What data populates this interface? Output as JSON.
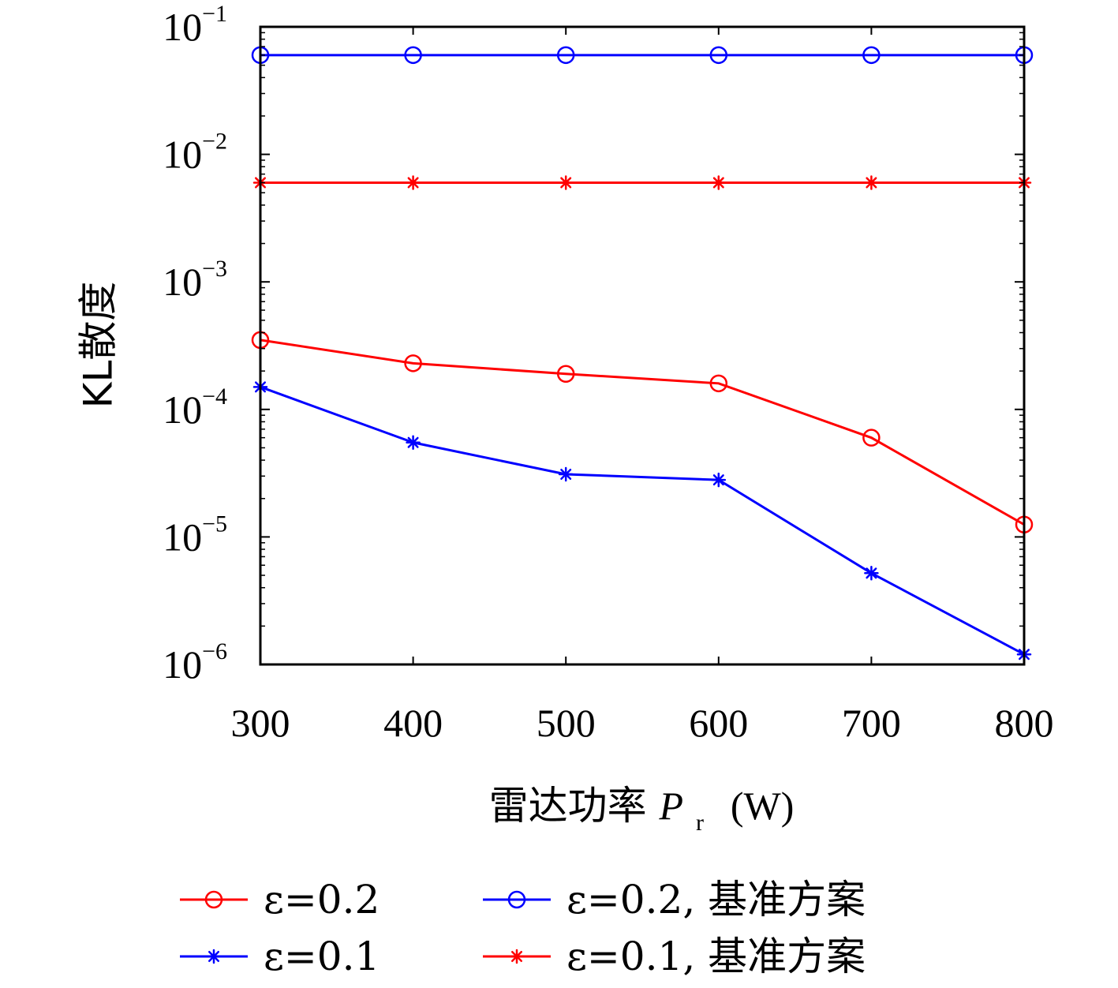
{
  "chart_data": {
    "type": "line",
    "y_scale": "log",
    "xlabel": "雷达功率",
    "xlabel_symbol": "P",
    "xlabel_subscript": "r",
    "xlabel_unit": "(W)",
    "ylabel": "KL散度",
    "xlim": [
      300,
      800
    ],
    "ylim": [
      1e-06,
      0.1
    ],
    "grid": false,
    "x": [
      300,
      400,
      500,
      600,
      700,
      800
    ],
    "x_tick_labels": [
      "300",
      "400",
      "500",
      "600",
      "700",
      "800"
    ],
    "y_ticks": [
      {
        "base": "10",
        "exp": "−6",
        "value": 1e-06
      },
      {
        "base": "10",
        "exp": "−5",
        "value": 1e-05
      },
      {
        "base": "10",
        "exp": "−4",
        "value": 0.0001
      },
      {
        "base": "10",
        "exp": "−3",
        "value": 0.001
      },
      {
        "base": "10",
        "exp": "−2",
        "value": 0.01
      },
      {
        "base": "10",
        "exp": "−1",
        "value": 0.1
      }
    ],
    "legend_placement": "bottom",
    "series": [
      {
        "name": "ε=0.2",
        "color": "#ff0000",
        "marker": "circle",
        "values": [
          0.00035,
          0.00023,
          0.00019,
          0.00016,
          6e-05,
          1.25e-05
        ]
      },
      {
        "name": "ε=0.1",
        "color": "#0000ff",
        "marker": "star",
        "values": [
          0.00015,
          5.5e-05,
          3.1e-05,
          2.8e-05,
          5.2e-06,
          1.2e-06
        ]
      },
      {
        "name": "ε=0.2, 基准方案",
        "color": "#0000ff",
        "marker": "circle",
        "values": [
          0.06,
          0.06,
          0.06,
          0.06,
          0.06,
          0.06
        ]
      },
      {
        "name": "ε=0.1, 基准方案",
        "color": "#ff0000",
        "marker": "star",
        "values": [
          0.006,
          0.006,
          0.006,
          0.006,
          0.006,
          0.006
        ]
      }
    ]
  }
}
